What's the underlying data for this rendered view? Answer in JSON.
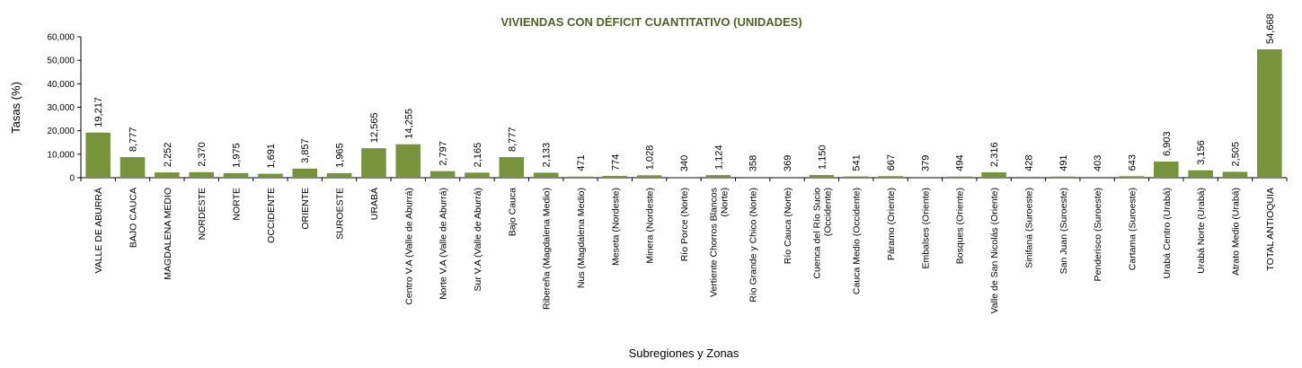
{
  "chart_data": {
    "type": "bar",
    "title": "VIVIENDAS CON DÉFICIT CUANTITATIVO (UNIDADES)",
    "xlabel": "Subregiones y Zonas",
    "ylabel": "Tasas (%)",
    "ylim": [
      0,
      60000
    ],
    "yticks": [
      "0",
      "10,000",
      "20,000",
      "30,000",
      "40,000",
      "50,000",
      "60,000"
    ],
    "bar_color": "#77933c",
    "grid": false,
    "categories": [
      [
        "VALLE DE ABURRÁ"
      ],
      [
        "BAJO CAUCA"
      ],
      [
        "MAGDALENA MEDIO"
      ],
      [
        "NORDESTE"
      ],
      [
        "NORTE"
      ],
      [
        "OCCIDENTE"
      ],
      [
        "ORIENTE"
      ],
      [
        "SUROESTE"
      ],
      [
        "URABÁ"
      ],
      [
        "Centro V.A (Valle de Aburrá)"
      ],
      [
        "Norte V.A (Valle de Aburrá)"
      ],
      [
        "Sur V.A (Valle de Aburrá)"
      ],
      [
        "Bajo Cauca"
      ],
      [
        "Ribereña  (Magdalena Medio)"
      ],
      [
        "Nus  (Magdalena Medio)"
      ],
      [
        "Meseta  (Nordeste)"
      ],
      [
        "Minera  (Nordeste)"
      ],
      [
        "Río Porce  (Norte)"
      ],
      [
        "Vertiente Chorros Blancos",
        "(Norte)"
      ],
      [
        "Río Grande y Chico  (Norte)"
      ],
      [
        "Río Cauca  (Norte)"
      ],
      [
        "Cuenca del Río Sucio",
        "(Occidente)"
      ],
      [
        "Cauca Medio  (Occidente)"
      ],
      [
        "Páramo  (Oriente)"
      ],
      [
        "Embalses  (Oriente)"
      ],
      [
        "Bosques  (Oriente)"
      ],
      [
        "Valle de San Nicolás (Oriente)"
      ],
      [
        "Sinifaná  (Suroeste)"
      ],
      [
        "San Juan  (Suroeste)"
      ],
      [
        "Penderisco  (Suroeste)"
      ],
      [
        "Cartama  (Suroeste)"
      ],
      [
        "Urabá Centro  (Urabá)"
      ],
      [
        "Urabá Norte  (Urabá)"
      ],
      [
        "Atrato Medio  (Urabá)"
      ],
      [
        "TOTAL ANTIOQUIA"
      ]
    ],
    "values": [
      19217,
      8777,
      2252,
      2370,
      1975,
      1691,
      3857,
      1965,
      12565,
      14255,
      2797,
      2165,
      8777,
      2133,
      471,
      774,
      1028,
      340,
      1124,
      358,
      369,
      1150,
      541,
      667,
      379,
      494,
      2316,
      428,
      491,
      403,
      643,
      6903,
      3156,
      2505,
      54668
    ],
    "value_labels": [
      "19,217",
      "8,777",
      "2,252",
      "2,370",
      "1,975",
      "1,691",
      "3,857",
      "1,965",
      "12,565",
      "14,255",
      "2,797",
      "2,165",
      "8,777",
      "2,133",
      "471",
      "774",
      "1,028",
      "340",
      "1,124",
      "358",
      "369",
      "1,150",
      "541",
      "667",
      "379",
      "494",
      "2,316",
      "428",
      "491",
      "403",
      "643",
      "6,903",
      "3,156",
      "2,505",
      "54,668"
    ]
  }
}
